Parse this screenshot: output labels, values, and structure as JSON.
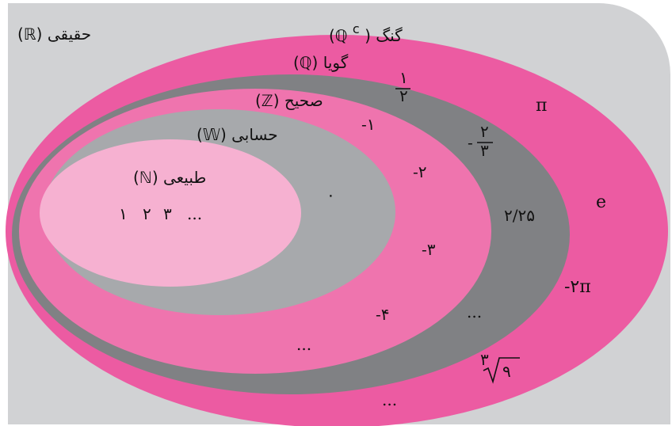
{
  "colors": {
    "background": "#d1d2d4",
    "irrational": "#ec5ba2",
    "rational": "#808184",
    "integer": "#ef74ae",
    "whole": "#a7a9ac",
    "natural": "#f6b1d1"
  },
  "sets": {
    "real": {
      "word": "حقیقی",
      "symbol": "(ℝ)"
    },
    "irrational": {
      "word": "گنگ",
      "symbol": "(ℚ",
      "sup": "c",
      "close": ")"
    },
    "rational": {
      "word": "گویا",
      "symbol": "(ℚ)"
    },
    "integer": {
      "word": "صحیح",
      "symbol": "(ℤ)"
    },
    "whole": {
      "word": "حسابی",
      "symbol": "(𝕎)"
    },
    "natural": {
      "word": "طبیعی",
      "symbol": "(ℕ)"
    }
  },
  "members": {
    "natural": {
      "n1": "۱",
      "n2": "۲",
      "n3": "۳",
      "dots": "..."
    },
    "whole": {
      "zero": "۰"
    },
    "integer": {
      "m1": "-۱",
      "m2": "-۲",
      "m3": "-۳",
      "m4": "-۴",
      "dots": "..."
    },
    "rational": {
      "half_num": "۱",
      "half_den": "۲",
      "neg_sign": "-",
      "tt_num": "۲",
      "tt_den": "۳",
      "decimal": "۲/۲۵",
      "dots": "..."
    },
    "irrational": {
      "pi": "π",
      "e": "e",
      "neg2pi": "-۲π",
      "root_index": "۳",
      "root_radicand": "۹",
      "dots": "..."
    }
  }
}
